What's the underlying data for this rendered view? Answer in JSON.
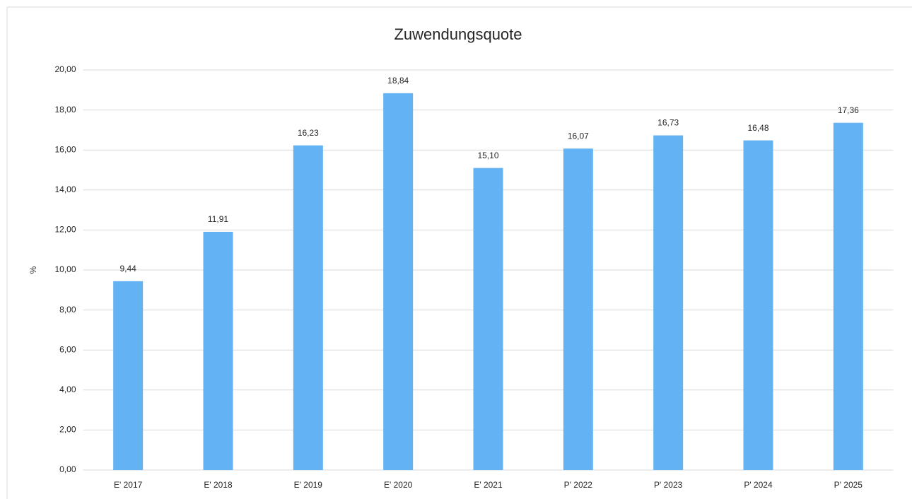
{
  "chart_data": {
    "type": "bar",
    "title": "Zuwendungsquote",
    "y_label": "%",
    "categories": [
      "E' 2017",
      "E' 2018",
      "E' 2019",
      "E' 2020",
      "E' 2021",
      "P' 2022",
      "P' 2023",
      "P' 2024",
      "P' 2025"
    ],
    "values": [
      9.44,
      11.91,
      16.23,
      18.84,
      15.1,
      16.07,
      16.73,
      16.48,
      17.36
    ],
    "value_labels": [
      "9,44",
      "11,91",
      "16,23",
      "18,84",
      "15,10",
      "16,07",
      "16,73",
      "16,48",
      "17,36"
    ],
    "color": "#63b3f4",
    "ylim": [
      0,
      20
    ],
    "yticks": [
      {
        "value": 0,
        "label": "0,00"
      },
      {
        "value": 2,
        "label": "2,00"
      },
      {
        "value": 4,
        "label": "4,00"
      },
      {
        "value": 6,
        "label": "6,00"
      },
      {
        "value": 8,
        "label": "8,00"
      },
      {
        "value": 10,
        "label": "10,00"
      },
      {
        "value": 12,
        "label": "12,00"
      },
      {
        "value": 14,
        "label": "14,00"
      },
      {
        "value": 16,
        "label": "16,00"
      },
      {
        "value": 18,
        "label": "18,00"
      },
      {
        "value": 20,
        "label": "20,00"
      }
    ],
    "grid": true
  }
}
